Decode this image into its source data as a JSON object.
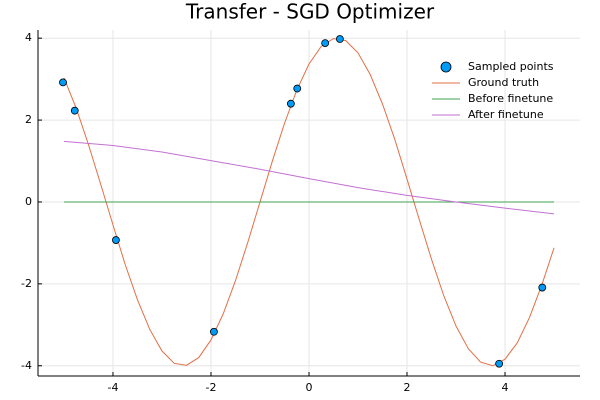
{
  "chart_data": {
    "type": "line",
    "title": "Transfer - SGD Optimizer",
    "xlim": [
      -5.53,
      5.53
    ],
    "ylim": [
      -4.25,
      4.2
    ],
    "xticks": [
      -4,
      -2,
      0,
      2,
      4
    ],
    "yticks": [
      -4,
      -2,
      0,
      2,
      4
    ],
    "grid": true,
    "legend": "top-right",
    "series": [
      {
        "name": "Sampled points",
        "mark": "scatter",
        "color": "#009af9",
        "x": [
          -5.02,
          -4.78,
          -3.94,
          -1.94,
          -0.37,
          -0.24,
          0.33,
          0.63,
          3.88,
          4.76
        ],
        "values": [
          2.92,
          2.23,
          -0.93,
          -3.17,
          2.4,
          2.77,
          3.88,
          3.98,
          -3.95,
          -2.09
        ]
      },
      {
        "name": "Ground truth",
        "mark": "line",
        "color": "#e26f46",
        "x": [
          -5,
          -4.75,
          -4.5,
          -4.25,
          -4,
          -3.75,
          -3.5,
          -3.25,
          -3,
          -2.75,
          -2.5,
          -2.25,
          -2,
          -1.75,
          -1.5,
          -1.25,
          -1,
          -0.75,
          -0.5,
          -0.25,
          0,
          0.25,
          0.5,
          0.75,
          1,
          1.25,
          1.5,
          1.75,
          2,
          2.25,
          2.5,
          2.75,
          3,
          3.25,
          3.5,
          3.75,
          4,
          4.25,
          4.5,
          4.75,
          5
        ],
        "values": [
          3.03,
          2.29,
          1.4,
          0.43,
          -0.56,
          -1.53,
          -2.39,
          -3.11,
          -3.64,
          -3.94,
          -3.99,
          -3.8,
          -3.37,
          -2.73,
          -1.92,
          -0.99,
          0,
          0.99,
          1.92,
          2.73,
          3.37,
          3.8,
          3.99,
          3.94,
          3.64,
          3.11,
          2.39,
          1.53,
          0.56,
          -0.43,
          -1.4,
          -2.29,
          -3.03,
          -3.58,
          -3.91,
          -4.0,
          -3.84,
          -3.44,
          -2.82,
          -2.03,
          -1.12
        ]
      },
      {
        "name": "Before finetune",
        "mark": "line",
        "color": "#3da44d",
        "x": [
          -5,
          5
        ],
        "values": [
          0,
          0
        ]
      },
      {
        "name": "After finetune",
        "mark": "line",
        "color": "#c271d2",
        "x": [
          -5,
          -4,
          -3,
          -2,
          -1,
          0,
          1,
          2,
          3,
          4,
          5
        ],
        "values": [
          1.48,
          1.38,
          1.22,
          1.01,
          0.8,
          0.57,
          0.35,
          0.16,
          0.0,
          -0.15,
          -0.29
        ]
      }
    ]
  }
}
